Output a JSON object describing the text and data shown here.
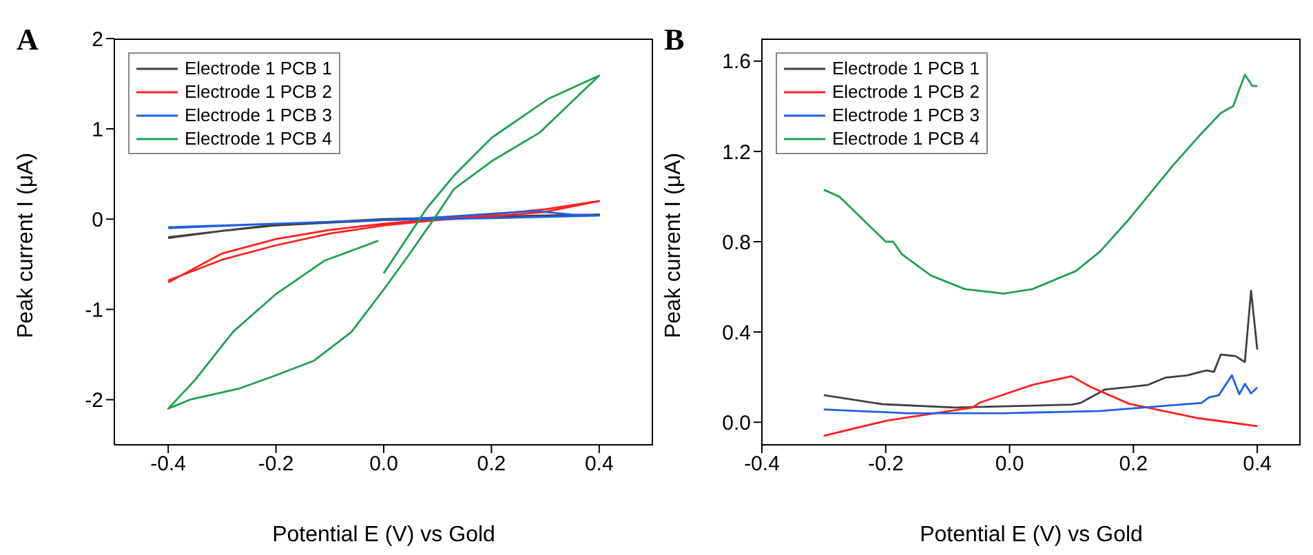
{
  "chart_data": [
    {
      "type": "line",
      "title": "A",
      "xlabel": "Potential E (V) vs Gold",
      "ylabel": "Peak current I (μA)",
      "xlim": [
        -0.5,
        0.5
      ],
      "xticks": [
        -0.4,
        -0.2,
        {
          "value": 0,
          "label": "0.0"
        },
        0.2,
        0.4
      ],
      "ylim": [
        -2.5,
        2
      ],
      "yticks": [
        -2,
        -1,
        0,
        1,
        2
      ],
      "legend": "top left",
      "grid": false,
      "marker": "none",
      "line_style": "solid",
      "series": [
        {
          "name": "Electrode 1 PCB 1",
          "color": "#404040",
          "x": [
            -0.4,
            -0.3,
            -0.2,
            -0.1,
            0,
            0.2,
            0.4,
            0.2,
            0,
            -0.2,
            -0.4
          ],
          "values": [
            -0.21,
            -0.13,
            -0.07,
            -0.04,
            -0.01,
            0.02,
            0.05,
            0.03,
            0,
            -0.06,
            -0.2
          ]
        },
        {
          "name": "Electrode 1 PCB 2",
          "color": "#ff2020",
          "x": [
            -0.4,
            -0.3,
            -0.2,
            -0.1,
            0,
            0.1,
            0.2,
            0.3,
            0.4,
            0.3,
            0.2,
            0.1,
            0,
            -0.1,
            -0.2,
            -0.3,
            -0.4
          ],
          "values": [
            -0.7,
            -0.38,
            -0.22,
            -0.12,
            -0.05,
            0,
            0.05,
            0.11,
            0.2,
            0.08,
            0.03,
            -0.01,
            -0.07,
            -0.16,
            -0.29,
            -0.45,
            -0.68
          ]
        },
        {
          "name": "Electrode 1 PCB 3",
          "color": "#1f5fdf",
          "x": [
            -0.4,
            -0.2,
            0,
            0.1,
            0.2,
            0.28,
            0.35,
            0.4,
            0.2,
            0,
            -0.2,
            -0.4
          ],
          "values": [
            -0.1,
            -0.05,
            -0.01,
            0.02,
            0.06,
            0.09,
            0.05,
            0.04,
            0.01,
            -0.01,
            -0.05,
            -0.09
          ]
        },
        {
          "name": "Electrode 1 PCB 4",
          "color": "#20a050",
          "x": [
            0,
            0.08,
            0.13,
            0.2,
            0.305,
            0.4,
            0.29,
            0.2,
            0.13,
            0.1,
            0.045,
            0,
            -0.06,
            -0.13,
            -0.2,
            -0.27,
            -0.33,
            -0.36,
            -0.4,
            -0.35,
            -0.28,
            -0.2,
            -0.11,
            -0.01
          ],
          "values": [
            -0.6,
            0.12,
            0.48,
            0.9,
            1.33,
            1.59,
            0.96,
            0.64,
            0.33,
            0.06,
            -0.41,
            -0.78,
            -1.25,
            -1.57,
            -1.73,
            -1.88,
            -1.96,
            -2,
            -2.1,
            -1.78,
            -1.25,
            -0.83,
            -0.46,
            -0.24
          ]
        }
      ]
    },
    {
      "type": "line",
      "title": "B",
      "xlabel": "Potential E (V) vs Gold",
      "ylabel": "Peak current I (μA)",
      "xlim": [
        -0.4,
        0.47
      ],
      "xticks": [
        -0.4,
        -0.2,
        {
          "value": 0,
          "label": "0.0"
        },
        0.2,
        0.4
      ],
      "ylim": [
        -0.1,
        1.7
      ],
      "yticks": [
        {
          "value": 0,
          "label": "0.0"
        },
        0.4,
        0.8,
        1.2,
        1.6
      ],
      "legend": "top left",
      "grid": false,
      "marker": "none",
      "line_style": "solid",
      "series": [
        {
          "name": "Electrode 1 PCB 1",
          "color": "#404040",
          "x": [
            -0.3,
            -0.205,
            -0.088,
            0.1,
            0.115,
            0.154,
            0.193,
            0.224,
            0.252,
            0.287,
            0.318,
            0.33,
            0.341,
            0.365,
            0.38,
            0.39,
            0.4
          ],
          "values": [
            0.12,
            0.08,
            0.065,
            0.078,
            0.086,
            0.145,
            0.156,
            0.166,
            0.198,
            0.208,
            0.23,
            0.223,
            0.3,
            0.293,
            0.267,
            0.583,
            0.322
          ]
        },
        {
          "name": "Electrode 1 PCB 2",
          "color": "#ff2020",
          "x": [
            -0.3,
            -0.197,
            -0.06,
            -0.049,
            0.037,
            0.1,
            0.131,
            0.193,
            0.302,
            0.4
          ],
          "values": [
            -0.06,
            0.008,
            0.065,
            0.086,
            0.166,
            0.204,
            0.156,
            0.082,
            0.019,
            -0.017
          ]
        },
        {
          "name": "Electrode 1 PCB 3",
          "color": "#1f5fdf",
          "x": [
            -0.3,
            -0.166,
            -0.01,
            0.146,
            0.31,
            0.322,
            0.338,
            0.359,
            0.371,
            0.38,
            0.39,
            0.4
          ],
          "values": [
            0.057,
            0.04,
            0.04,
            0.05,
            0.086,
            0.11,
            0.12,
            0.208,
            0.124,
            0.17,
            0.128,
            0.154
          ]
        },
        {
          "name": "Electrode 1 PCB 4",
          "color": "#20a050",
          "x": [
            -0.3,
            -0.275,
            -0.2,
            -0.188,
            -0.174,
            -0.127,
            -0.072,
            -0.01,
            0.037,
            0.107,
            0.146,
            0.193,
            0.263,
            0.31,
            0.341,
            0.361,
            0.38,
            0.392,
            0.4
          ],
          "values": [
            1.03,
            1,
            0.8,
            0.8,
            0.745,
            0.65,
            0.59,
            0.57,
            0.59,
            0.67,
            0.756,
            0.9,
            1.135,
            1.28,
            1.37,
            1.4,
            1.54,
            1.49,
            1.49
          ]
        }
      ]
    }
  ]
}
